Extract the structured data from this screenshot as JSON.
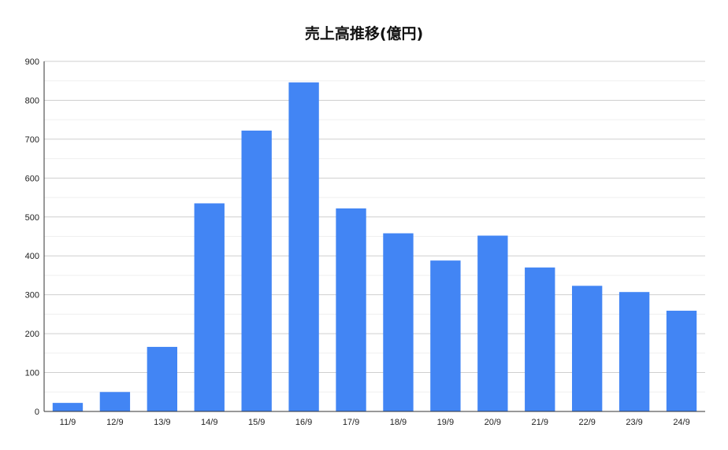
{
  "chart_data": {
    "type": "bar",
    "title": "売上高推移(億円)",
    "xlabel": "",
    "ylabel": "",
    "categories": [
      "11/9",
      "12/9",
      "13/9",
      "14/9",
      "15/9",
      "16/9",
      "17/9",
      "18/9",
      "19/9",
      "20/9",
      "21/9",
      "22/9",
      "23/9",
      "24/9"
    ],
    "values": [
      22,
      50,
      166,
      535,
      722,
      846,
      522,
      458,
      388,
      452,
      370,
      323,
      307,
      259
    ],
    "ylim": [
      0,
      900
    ],
    "yticks": [
      0,
      100,
      200,
      300,
      400,
      500,
      600,
      700,
      800,
      900
    ],
    "grid": true,
    "legend": "none",
    "bar_color": "#4285f4"
  }
}
